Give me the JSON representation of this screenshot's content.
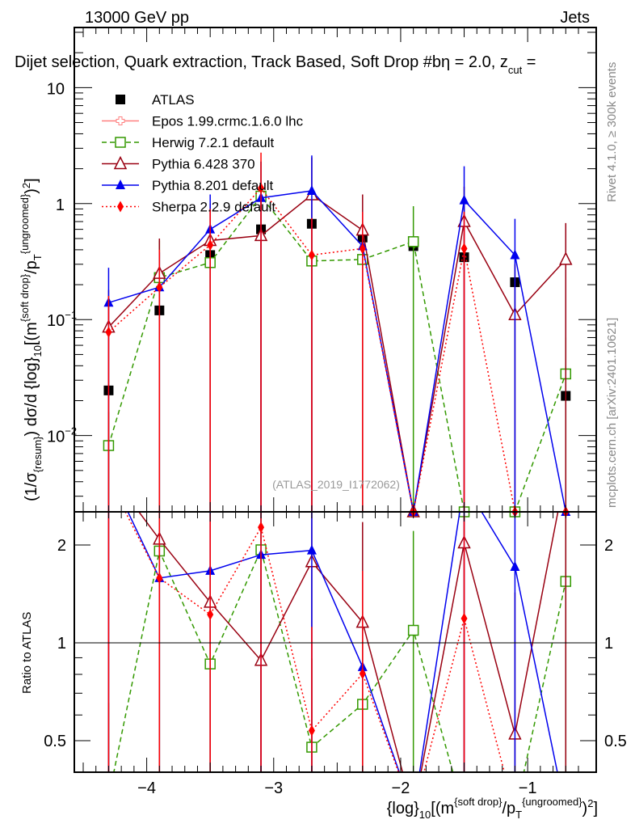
{
  "header": {
    "left": "13000 GeV pp",
    "right": "Jets"
  },
  "side_labels": {
    "rivet": "Rivet 4.1.0, ≥ 300k events",
    "mcplots": "mcplots.cern.ch [arXiv:2401.10621]"
  },
  "watermark": "(ATLAS_2019_I1772062)",
  "colors": {
    "ATLAS": "#000000",
    "Epos": "#ff8080",
    "Herwig": "#339900",
    "Pythia6": "#990011",
    "Pythia8": "#0000ee",
    "Sherpa": "#ff0000"
  },
  "chart_data": {
    "type": "line",
    "title": "Dijet selection, Quark extraction, Track Based, Soft Drop #bη = 2.0, z",
    "title_sub": "cut",
    "title_tail": " =",
    "ylabel": "(1/σ_{resum}) dσ/d {log}_{10}[(m^{soft drop}/p_T^{ungroomed})^2]",
    "ylabel_parts": {
      "a": "(1/σ",
      "b": "{resum}",
      "c": ") dσ/d {log}",
      "d": "10",
      "e": "[(m",
      "f": "{soft drop}",
      "g": "/p",
      "h": "T",
      "i": "{ungroomed}",
      "j": ")",
      "k": "2",
      "l": "]"
    },
    "xlabel_parts": {
      "a": "{log}",
      "b": "10",
      "c": "[(m",
      "d": "{soft drop}",
      "e": "/p",
      "f": "T",
      "g": "{ungroomed}",
      "h": ")",
      "i": "2",
      "j": "]"
    },
    "ratio_ylabel": "Ratio to ATLAS",
    "xlim": [
      -4.57,
      -0.46
    ],
    "ylim": [
      0.0022,
      33
    ],
    "ratio_ylim": [
      0.4,
      2.53
    ],
    "yscale": "log",
    "x": [
      -4.3,
      -3.9,
      -3.5,
      -3.1,
      -2.7,
      -2.3,
      -1.9,
      -1.5,
      -1.1,
      -0.7
    ],
    "x_ticks": [
      {
        "v": -4,
        "label": "−4"
      },
      {
        "v": -3,
        "label": "−3"
      },
      {
        "v": -2,
        "label": "−2"
      },
      {
        "v": -1,
        "label": "−1"
      }
    ],
    "y_ticks": [
      {
        "v": 10,
        "label": "10",
        "exp": ""
      },
      {
        "v": 1,
        "label": "1",
        "exp": ""
      },
      {
        "v": 0.1,
        "label": "10",
        "exp": "−1"
      },
      {
        "v": 0.01,
        "label": "10",
        "exp": "−2"
      }
    ],
    "ratio_ticks": [
      {
        "v": 0.5,
        "label": "0.5"
      },
      {
        "v": 1,
        "label": "1"
      },
      {
        "v": 2,
        "label": "2"
      }
    ],
    "legend_position": "top-left",
    "series": [
      {
        "key": "ATLAS",
        "name": "ATLAS",
        "marker": "square-filled",
        "line": "none",
        "values": [
          0.0245,
          0.12,
          0.36,
          0.6,
          0.67,
          0.51,
          0.43,
          0.345,
          0.21,
          0.022
        ],
        "err_hi": [
          null,
          null,
          null,
          null,
          null,
          null,
          null,
          null,
          null,
          null
        ]
      },
      {
        "key": "Epos",
        "name": "Epos 1.99.crmc.1.6.0 lhc",
        "marker": "cross-open",
        "line": "solid",
        "values": [
          null,
          null,
          null,
          null,
          null,
          null,
          null,
          null,
          null,
          null
        ],
        "err_hi": [
          null,
          null,
          null,
          null,
          null,
          null,
          null,
          null,
          null,
          null
        ]
      },
      {
        "key": "Herwig",
        "name": "Herwig 7.2.1 default",
        "marker": "square-open",
        "line": "dashed",
        "values": [
          0.0082,
          0.23,
          0.31,
          1.16,
          0.32,
          0.33,
          0.47,
          0,
          0,
          0.034
        ],
        "err_hi": [
          0.016,
          0.48,
          0.6,
          2.3,
          0.6,
          0.6,
          0.95,
          null,
          null,
          0.07
        ]
      },
      {
        "key": "Pythia6",
        "name": "Pythia 6.428 370",
        "marker": "triangle-open",
        "line": "solid",
        "values": [
          0.086,
          0.25,
          0.48,
          0.53,
          1.19,
          0.59,
          0,
          0.7,
          0.11,
          0.33
        ],
        "err_hi": [
          0.18,
          0.5,
          1.0,
          1.1,
          2.5,
          1.2,
          null,
          1.4,
          0.3,
          0.68
        ]
      },
      {
        "key": "Pythia8",
        "name": "Pythia 8.201 default",
        "marker": "triangle-filled",
        "line": "solid",
        "values": [
          0.14,
          0.19,
          0.6,
          1.12,
          1.29,
          0.43,
          0,
          1.07,
          0.36,
          0
        ],
        "err_hi": [
          0.28,
          0.38,
          1.2,
          2.3,
          2.6,
          0.85,
          null,
          2.1,
          0.74,
          null
        ]
      },
      {
        "key": "Sherpa",
        "name": "Sherpa 2.2.9 default",
        "marker": "diamond-filled",
        "line": "dotted",
        "values": [
          0.078,
          0.19,
          0.44,
          1.36,
          0.36,
          0.41,
          0,
          0.41,
          0,
          0
        ],
        "err_hi": [
          0.16,
          0.4,
          0.9,
          2.75,
          0.75,
          0.85,
          null,
          0.85,
          null,
          null
        ]
      }
    ]
  }
}
